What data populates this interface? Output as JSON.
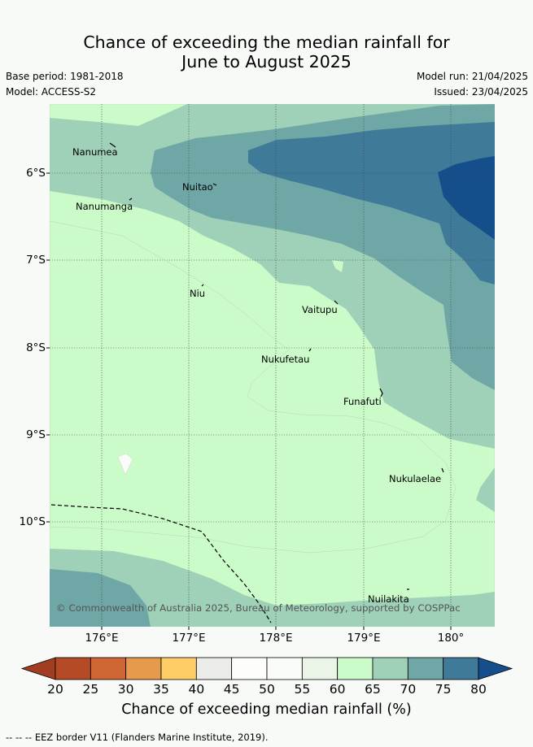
{
  "header": {
    "title_line1": "Chance of exceeding the median rainfall for",
    "title_line2": "June to August 2025",
    "base_period": "Base period: 1981-2018",
    "model": "Model: ACCESS-S2",
    "model_run": "Model run: 21/04/2025",
    "issued": "Issued: 23/04/2025"
  },
  "map": {
    "lat_labels": [
      "6°S",
      "7°S",
      "8°S",
      "9°S",
      "10°S"
    ],
    "lon_labels": [
      "176°E",
      "177°E",
      "178°E",
      "179°E",
      "180°"
    ],
    "places": [
      "Nanumea",
      "Nuitao",
      "Nanumanga",
      "Niu",
      "Vaitupu",
      "Nukufetau",
      "Funafuti",
      "Nukulaelae",
      "Nuilakita"
    ],
    "copyright": "© Commonwealth of Australia 2025, Bureau of Meteorology, supported by COSPPac"
  },
  "colorbar": {
    "ticks": [
      "20",
      "25",
      "30",
      "35",
      "40",
      "45",
      "50",
      "55",
      "60",
      "65",
      "70",
      "75",
      "80"
    ],
    "colors": [
      "#b54a27",
      "#d06633",
      "#e59a4c",
      "#fecd66",
      "#ebebe9",
      "#fdfdfc",
      "#fafcf8",
      "#eaf5e7",
      "#cbfbc8",
      "#9ed1b8",
      "#6fa7a7",
      "#3f7a99"
    ],
    "under_color": "#a13d20",
    "over_color": "#144f8b",
    "title": "Chance of exceeding median rainfall (%)"
  },
  "footer": {
    "legend": "--  --  -- EEZ border V11 (Flanders Marine Institute, 2019)."
  }
}
